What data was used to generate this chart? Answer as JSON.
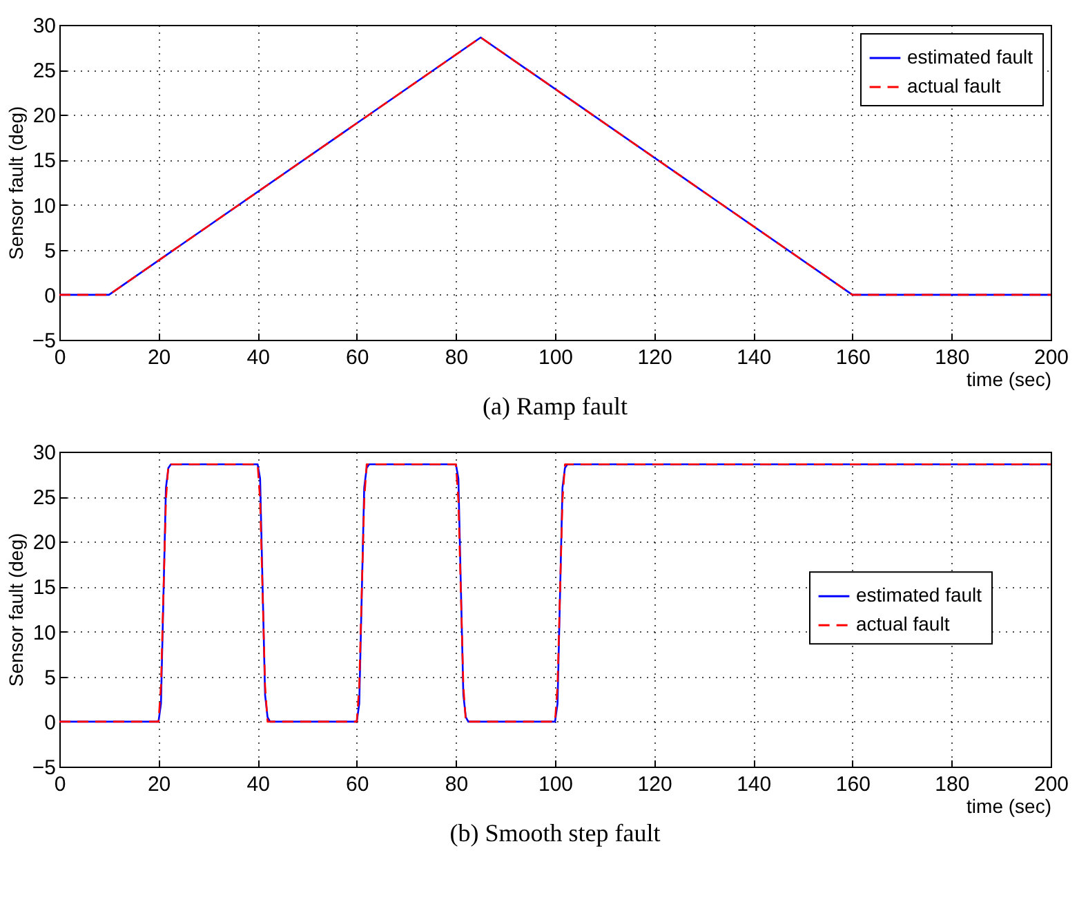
{
  "chart_data": [
    {
      "type": "line",
      "title": "(a) Ramp fault",
      "xlabel": "time (sec)",
      "ylabel": "Sensor fault (deg)",
      "xlim": [
        0,
        200
      ],
      "xticks": [
        0,
        20,
        40,
        60,
        80,
        100,
        120,
        140,
        160,
        180,
        200
      ],
      "ylim": [
        -5,
        30
      ],
      "yticks": [
        -5,
        0,
        5,
        10,
        15,
        20,
        25,
        30
      ],
      "grid": true,
      "legend": "top right",
      "series": [
        {
          "name": "estimated fault",
          "color": "#0000ff",
          "line_style": "solid",
          "x": [
            0,
            10,
            85,
            160,
            200
          ],
          "values": [
            0,
            0,
            28.6,
            0,
            0
          ]
        },
        {
          "name": "actual fault",
          "color": "#ff0000",
          "line_style": "dashed",
          "x": [
            0,
            10,
            85,
            160,
            200
          ],
          "values": [
            0,
            0,
            28.6,
            0,
            0
          ]
        }
      ]
    },
    {
      "type": "line",
      "title": "(b) Smooth step fault",
      "xlabel": "time (sec)",
      "ylabel": "Sensor fault (deg)",
      "xlim": [
        0,
        200
      ],
      "xticks": [
        0,
        20,
        40,
        60,
        80,
        100,
        120,
        140,
        160,
        180,
        200
      ],
      "ylim": [
        -5,
        30
      ],
      "yticks": [
        -5,
        0,
        5,
        10,
        15,
        20,
        25,
        30
      ],
      "grid": true,
      "legend": "right",
      "series": [
        {
          "name": "estimated fault",
          "color": "#0000ff",
          "line_style": "solid",
          "x": [
            0,
            20,
            20.5,
            21,
            21.5,
            22,
            22.5,
            40,
            40.5,
            41,
            41.5,
            42,
            42.5,
            60,
            60.5,
            61,
            61.5,
            62,
            62.5,
            80,
            80.5,
            81,
            81.5,
            82,
            82.5,
            100,
            100.5,
            101,
            101.5,
            102,
            102.5,
            200
          ],
          "values": [
            0,
            0,
            2,
            14,
            26,
            28.2,
            28.6,
            28.6,
            27,
            15,
            3,
            0.5,
            0,
            0,
            2,
            14,
            26,
            28.2,
            28.6,
            28.6,
            27,
            15,
            3,
            0.5,
            0,
            0,
            2,
            14,
            26,
            28.2,
            28.6,
            28.6
          ]
        },
        {
          "name": "actual fault",
          "color": "#ff0000",
          "line_style": "dashed",
          "x": [
            0,
            20,
            20.5,
            21,
            21.5,
            22,
            40,
            40.5,
            41,
            41.5,
            42,
            60,
            60.5,
            61,
            61.5,
            62,
            80,
            80.5,
            81,
            81.5,
            82,
            100,
            100.5,
            101,
            101.5,
            102,
            200
          ],
          "values": [
            0,
            0,
            4,
            14.3,
            24.6,
            28.6,
            28.6,
            24.6,
            14.3,
            4,
            0,
            0,
            4,
            14.3,
            24.6,
            28.6,
            28.6,
            24.6,
            14.3,
            4,
            0,
            0,
            4,
            14.3,
            24.6,
            28.6,
            28.6
          ]
        }
      ]
    }
  ]
}
